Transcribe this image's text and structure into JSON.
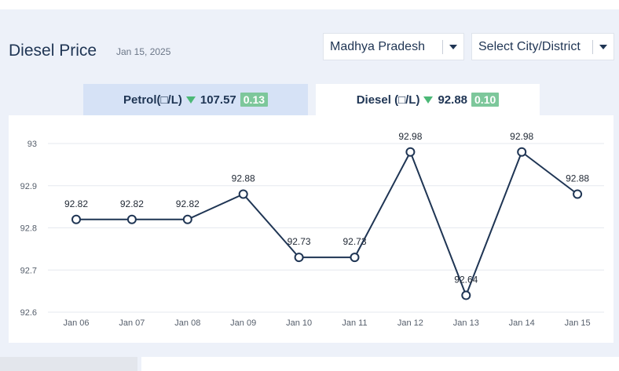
{
  "header": {
    "title": "Diesel Price",
    "date": "Jan 15, 2025",
    "state_select": "Madhya Pradesh",
    "city_select": "Select City/District"
  },
  "tabs": {
    "petrol": {
      "label": "Petrol(□/L)",
      "price": "107.57",
      "change": "0.13"
    },
    "diesel": {
      "label": "Diesel (□/L)",
      "price": "92.88",
      "change": "0.10"
    }
  },
  "colors": {
    "line": "#1f3554",
    "down_arrow": "#4cb877",
    "badge": "#7dc79b",
    "active_tab": "#ffffff",
    "inactive_tab": "#d6e2f6"
  },
  "chart_data": {
    "type": "line",
    "categories": [
      "Jan 06",
      "Jan 07",
      "Jan 08",
      "Jan 09",
      "Jan 10",
      "Jan 11",
      "Jan 12",
      "Jan 13",
      "Jan 14",
      "Jan 15"
    ],
    "values": [
      92.82,
      92.82,
      92.82,
      92.88,
      92.73,
      92.73,
      92.98,
      92.64,
      92.98,
      92.88
    ],
    "value_labels": [
      "92.82",
      "92.82",
      "92.82",
      "92.88",
      "92.73",
      "92.73",
      "92.98",
      "92.64",
      "92.98",
      "92.88"
    ],
    "yticks": [
      92.6,
      92.7,
      92.8,
      92.9,
      93
    ],
    "ytick_labels": [
      "92.6",
      "92.7",
      "92.8",
      "92.9",
      "93"
    ],
    "ylim": [
      92.6,
      93
    ],
    "grid": true,
    "title": "",
    "xlabel": "",
    "ylabel": ""
  }
}
